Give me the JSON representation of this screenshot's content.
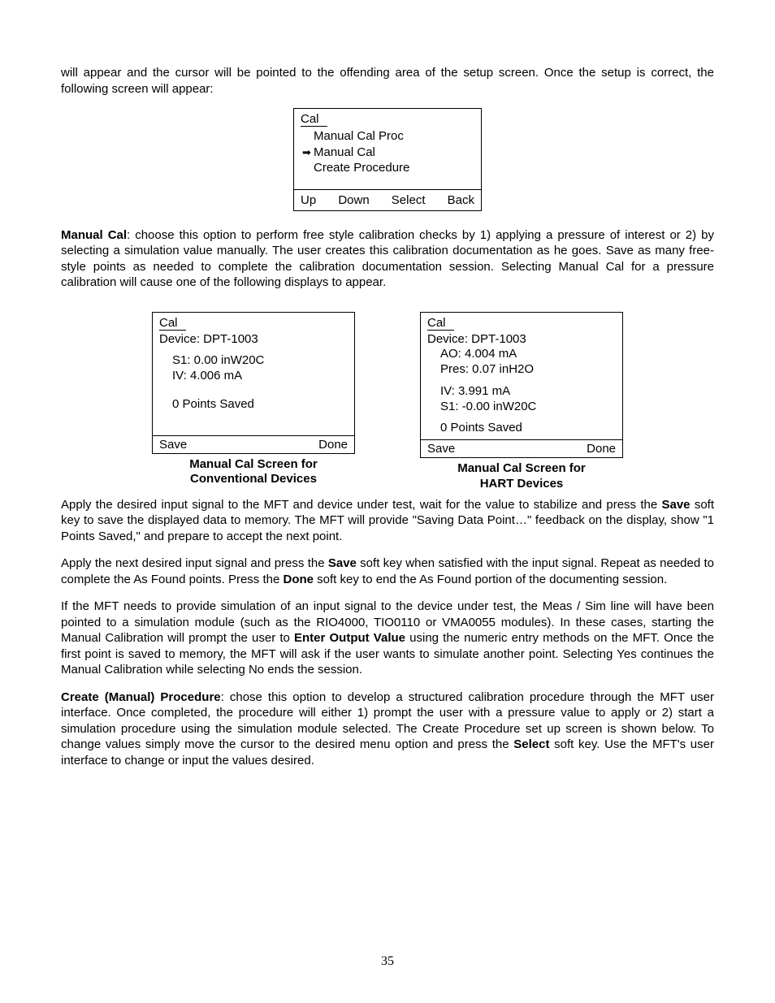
{
  "intro_paragraph": "will appear and the cursor will be pointed to the offending area of the setup screen.  Once the setup is correct, the following screen will appear:",
  "cal_menu": {
    "title": "Cal",
    "items": [
      "Manual Cal Proc",
      "Manual Cal",
      "Create Procedure"
    ],
    "selected_index": 1,
    "softkeys": [
      "Up",
      "Down",
      "Select",
      "Back"
    ]
  },
  "manual_cal_para": {
    "bold_lead": "Manual Cal",
    "rest": ": choose this option to perform free style calibration checks by 1) applying a pressure of interest or 2) by selecting a simulation value manually. The user creates this calibration documentation as he goes. Save as many free-style points as needed to complete the calibration documentation session.  Selecting Manual Cal for a pressure calibration will cause one of the following displays to appear."
  },
  "screen_left": {
    "title": "Cal",
    "device": "Device:   DPT-1003",
    "s1": "S1:  0.00   inW20C",
    "iv": "IV:  4.006 mA",
    "points": "0 Points Saved",
    "softkeys": [
      "Save",
      "Done"
    ],
    "caption_l1": "Manual Cal Screen for",
    "caption_l2": "Conventional Devices"
  },
  "screen_right": {
    "title": "Cal",
    "device": "Device:  DPT-1003",
    "ao": "AO:  4.004 mA",
    "pres": "Pres:  0.07 inH2O",
    "iv": "IV:  3.991  mA",
    "s1": "S1:  -0.00  inW20C",
    "points": "0 Points Saved",
    "softkeys": [
      "Save",
      "Done"
    ],
    "caption_l1": "Manual Cal Screen for",
    "caption_l2": "HART Devices"
  },
  "para_apply": {
    "p1a": "Apply the desired input signal to the MFT and device under test, wait for the value to stabilize and press the ",
    "b1": "Save",
    "p1b": " soft key to save the displayed data to memory.  The MFT will provide \"Saving Data Point…\" feedback on the display, show \"1 Points Saved,\" and prepare to accept the next point."
  },
  "para_next": {
    "p1a": "Apply the next desired input signal and press the ",
    "b1": "Save",
    "p1b": " soft key when satisfied with the input signal.  Repeat as needed to complete the As Found points.  Press the ",
    "b2": "Done",
    "p1c": " soft key to end the As Found portion of the documenting session."
  },
  "para_sim": {
    "p1a": "If the MFT needs to provide simulation of an input signal to the device under test, the Meas / Sim line will have been pointed to a simulation module (such as the RIO4000, TIO0110 or VMA0055 modules).  In these cases, starting the Manual Calibration will prompt the user to ",
    "b1": "Enter Output Value",
    "p1b": " using the numeric entry methods on the MFT. Once the first point is saved to memory, the MFT will ask if the user wants to simulate another point. Selecting Yes continues the Manual Calibration while selecting No ends the session."
  },
  "para_create": {
    "bold_lead": "Create (Manual) Procedure",
    "p1a": ": chose this option to develop a structured calibration procedure through the MFT user interface. Once completed, the procedure will either 1) prompt the user with a pressure value to apply or 2) start a simulation procedure using the simulation module selected.  The Create Procedure set up screen is shown below. To change values simply move the cursor to the desired menu option and press the ",
    "b1": "Select",
    "p1b": " soft key.  Use the MFT's user interface to change or input the values desired."
  },
  "page_number": "35"
}
